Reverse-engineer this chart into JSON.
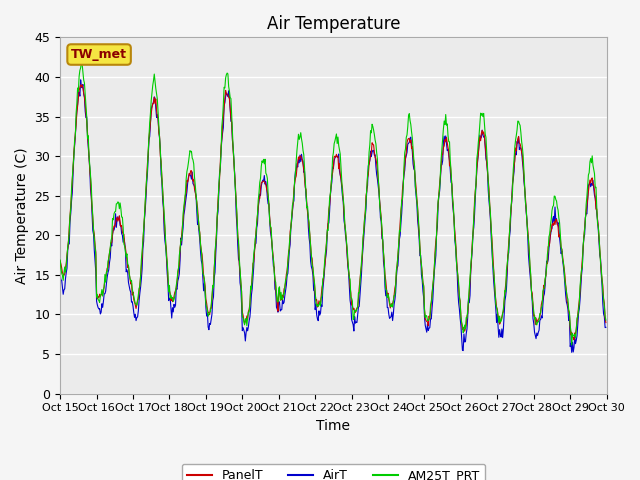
{
  "title": "Air Temperature",
  "ylabel": "Air Temperature (C)",
  "xlabel": "Time",
  "ylim": [
    0,
    45
  ],
  "yticks": [
    0,
    5,
    10,
    15,
    20,
    25,
    30,
    35,
    40,
    45
  ],
  "x_tick_labels": [
    "Oct 15",
    "Oct 16",
    "Oct 17",
    "Oct 18",
    "Oct 19",
    "Oct 20",
    "Oct 21",
    "Oct 22",
    "Oct 23",
    "Oct 24",
    "Oct 25",
    "Oct 26",
    "Oct 27",
    "Oct 28",
    "Oct 29",
    "Oct 30"
  ],
  "station_label": "TW_met",
  "legend_entries": [
    "PanelT",
    "AirT",
    "AM25T_PRT"
  ],
  "legend_colors": [
    "#cc0000",
    "#0000cc",
    "#00cc00"
  ],
  "line_colors_panel": "#cc0000",
  "line_colors_air": "#0000cc",
  "line_colors_am25": "#00cc00",
  "fig_bg_color": "#f5f5f5",
  "ax_bg_color": "#ebebeb",
  "grid_color": "#ffffff",
  "title_fontsize": 12,
  "label_fontsize": 10,
  "tick_fontsize": 9,
  "n_days": 15,
  "pts_per_day": 48,
  "day_peaks_panel": [
    39,
    22,
    37,
    28,
    38,
    27,
    30,
    30,
    31,
    32,
    32,
    33,
    32,
    22,
    27
  ],
  "day_troughs": [
    15,
    12,
    11,
    12,
    10,
    9,
    12,
    11,
    10,
    11,
    9,
    8,
    9,
    9,
    7
  ]
}
